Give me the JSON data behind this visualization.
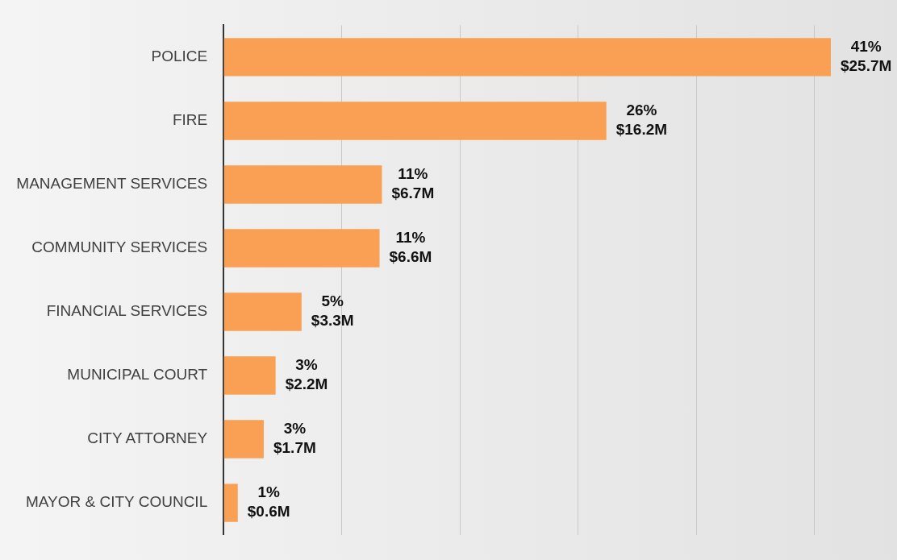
{
  "chart_data": {
    "type": "bar",
    "orientation": "horizontal",
    "categories": [
      "POLICE",
      "FIRE",
      "MANAGEMENT SERVICES",
      "COMMUNITY SERVICES",
      "FINANCIAL SERVICES",
      "MUNICIPAL COURT",
      "CITY ATTORNEY",
      "MAYOR & CITY COUNCIL"
    ],
    "values": [
      25.7,
      16.2,
      6.7,
      6.6,
      3.3,
      2.2,
      1.7,
      0.6
    ],
    "value_labels": [
      "$25.7M",
      "$16.2M",
      "$6.7M",
      "$6.6M",
      "$3.3M",
      "$2.2M",
      "$1.7M",
      "$0.6M"
    ],
    "annotations": [
      {
        "text": "41%",
        "x": 25.7,
        "y": "POLICE"
      },
      {
        "text": "26%",
        "x": 16.2,
        "y": "FIRE"
      },
      {
        "text": "11%",
        "x": 6.7,
        "y": "MANAGEMENT SERVICES"
      },
      {
        "text": "11%",
        "x": 6.6,
        "y": "COMMUNITY SERVICES"
      },
      {
        "text": "5%",
        "x": 3.3,
        "y": "FINANCIAL SERVICES"
      },
      {
        "text": "3%",
        "x": 2.2,
        "y": "MUNICIPAL COURT"
      },
      {
        "text": "3%",
        "x": 1.7,
        "y": "CITY ATTORNEY"
      },
      {
        "text": "1%",
        "x": 0.6,
        "y": "MAYOR & CITY COUNCIL"
      }
    ],
    "color": "#f9a055",
    "xlim": [
      0,
      28.5
    ],
    "xticks": [
      {
        "value": 0,
        "label": null
      },
      {
        "value": 5,
        "label": null
      },
      {
        "value": 10,
        "label": null
      },
      {
        "value": 15,
        "label": null
      },
      {
        "value": 20,
        "label": null
      },
      {
        "value": 25,
        "label": null
      }
    ],
    "grid": "x",
    "tick_labels": "y",
    "legend": false
  }
}
